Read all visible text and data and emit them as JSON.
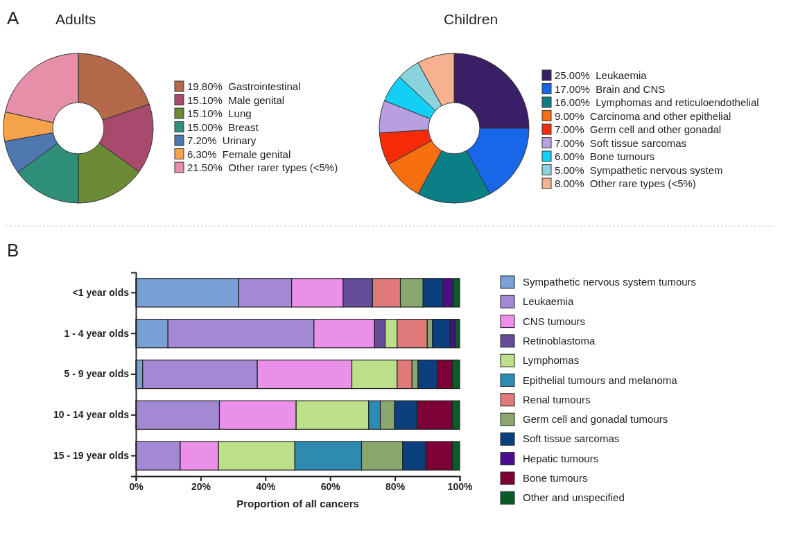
{
  "chart_data": [
    {
      "type": "donut",
      "title": "Adults",
      "annotations": [
        "A"
      ],
      "legend": "right",
      "categories": [
        "Gastrointestinal",
        "Male genital",
        "Lung",
        "Breast",
        "Urinary",
        "Female genital",
        "Other rarer types (<5%)"
      ],
      "values": [
        19.8,
        15.1,
        15.1,
        15.0,
        7.2,
        6.3,
        21.5
      ],
      "value_labels": [
        "19.80%",
        "15.10%",
        "15.10%",
        "15.00%",
        "7.20%",
        "6.30%",
        "21.50%"
      ],
      "colors": [
        "#b4694a",
        "#a84a6e",
        "#6a8a36",
        "#2f8f7a",
        "#4f78b0",
        "#f5a24c",
        "#e58fa8"
      ]
    },
    {
      "type": "donut",
      "title": "Children",
      "legend": "right",
      "categories": [
        "Leukaemia",
        "Brain and CNS",
        "Lymphomas and reticuloendothelial",
        "Carcinoma and other epithelial",
        "Germ cell and other gonadal",
        "Soft tissue sarcomas",
        "Bone tumours",
        "Sympathetic nervous system",
        "Other rare types (<5%)"
      ],
      "values": [
        25,
        17,
        16,
        9,
        7,
        7,
        6,
        5,
        8
      ],
      "value_labels": [
        "25.00%",
        "17.00%",
        "16.00%",
        "9.00%",
        "7.00%",
        "7.00%",
        "6.00%",
        "5.00%",
        "8.00%"
      ],
      "colors": [
        "#3a1f66",
        "#1767e8",
        "#0a7f86",
        "#f76f10",
        "#f72b08",
        "#b8a0e0",
        "#14cff5",
        "#88d3dc",
        "#f7b090"
      ]
    },
    {
      "type": "bar",
      "orientation": "horizontal",
      "stacked": true,
      "annotations": [
        "B"
      ],
      "legend": "right",
      "xlabel": "Proportion of all cancers",
      "xlim": [
        0,
        100
      ],
      "xticks": [
        {
          "value": 0,
          "label": "0%"
        },
        {
          "value": 20,
          "label": "20%"
        },
        {
          "value": 40,
          "label": "40%"
        },
        {
          "value": 60,
          "label": "60%"
        },
        {
          "value": 80,
          "label": "80%"
        },
        {
          "value": 100,
          "label": "100%"
        }
      ],
      "categories": [
        "<1 year olds",
        "1 - 4 year olds",
        "5 - 9 year olds",
        "10 - 14 year olds",
        "15 - 19 year olds"
      ],
      "series": [
        {
          "name": "Sympathetic nervous system tumours",
          "color": "#7ba0d6",
          "values": [
            31.7,
            9.9,
            2.1,
            null,
            null
          ]
        },
        {
          "name": "Leukaemia",
          "color": "#a389d4",
          "values": [
            16.4,
            45.1,
            35.4,
            25.8,
            13.7
          ]
        },
        {
          "name": "CNS tumours",
          "color": "#ea90e8",
          "values": [
            15.9,
            18.7,
            29.2,
            23.7,
            11.8
          ]
        },
        {
          "name": "Retinoblastoma",
          "color": "#664d9a",
          "values": [
            9.1,
            3.3,
            null,
            null,
            null
          ]
        },
        {
          "name": "Lymphomas",
          "color": "#bcdf8a",
          "values": [
            null,
            3.7,
            14.0,
            22.4,
            23.6
          ]
        },
        {
          "name": "Epithelial tumours and melanoma",
          "color": "#2e8ab0",
          "values": [
            null,
            null,
            null,
            3.6,
            20.6
          ]
        },
        {
          "name": "Renal tumours",
          "color": "#e07a7a",
          "values": [
            8.6,
            9.3,
            4.6,
            null,
            null
          ]
        },
        {
          "name": "Germ cell and gonadal tumours",
          "color": "#8aa86e",
          "values": [
            7.0,
            1.6,
            1.8,
            4.4,
            12.7
          ]
        },
        {
          "name": "Soft tissue sarcomas",
          "color": "#0b3f7e",
          "values": [
            6.2,
            5.5,
            6.0,
            7.0,
            7.2
          ]
        },
        {
          "name": "Hepatic tumours",
          "color": "#4b0c8e",
          "values": [
            3.0,
            1.5,
            null,
            null,
            null
          ]
        },
        {
          "name": "Bone tumours",
          "color": "#7d0036",
          "values": [
            null,
            null,
            4.6,
            10.8,
            8.1
          ]
        },
        {
          "name": "Other and unspecified",
          "color": "#0a5a2a",
          "values": [
            2.1,
            1.4,
            2.3,
            2.3,
            2.3
          ]
        }
      ]
    }
  ]
}
